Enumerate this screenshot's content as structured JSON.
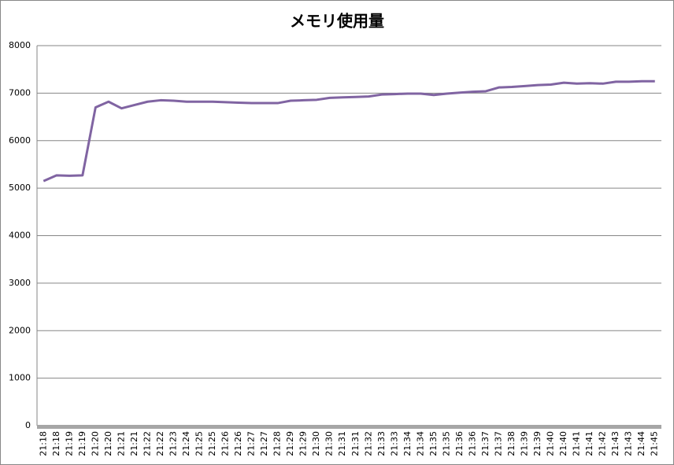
{
  "chart_data": {
    "type": "line",
    "title": "メモリ使用量",
    "categories": [
      "21:18",
      "21:18",
      "21:19",
      "21:19",
      "21:20",
      "21:20",
      "21:21",
      "21:21",
      "21:22",
      "21:22",
      "21:23",
      "21:24",
      "21:25",
      "21:25",
      "21:26",
      "21:26",
      "21:27",
      "21:27",
      "21:28",
      "21:29",
      "21:29",
      "21:30",
      "21:30",
      "21:31",
      "21:31",
      "21:32",
      "21:33",
      "21:33",
      "21:34",
      "21:34",
      "21:35",
      "21:35",
      "21:36",
      "21:36",
      "21:37",
      "21:37",
      "21:38",
      "21:39",
      "21:39",
      "21:40",
      "21:40",
      "21:41",
      "21:41",
      "21:42",
      "21:43",
      "21:43",
      "21:44",
      "21:45"
    ],
    "series": [
      {
        "name": "メモリ使用量",
        "color": "#8064a2",
        "values": [
          5150,
          5270,
          5260,
          5270,
          6700,
          6820,
          6680,
          6750,
          6820,
          6850,
          6840,
          6820,
          6820,
          6820,
          6810,
          6800,
          6790,
          6790,
          6790,
          6840,
          6850,
          6860,
          6900,
          6910,
          6920,
          6930,
          6970,
          6980,
          6990,
          6990,
          6960,
          6990,
          7010,
          7030,
          7040,
          7120,
          7130,
          7150,
          7170,
          7180,
          7220,
          7200,
          7210,
          7200,
          7240,
          7240,
          7250,
          7250
        ]
      }
    ],
    "ylim": [
      0,
      8000
    ],
    "yticks": [
      0,
      1000,
      2000,
      3000,
      4000,
      5000,
      6000,
      7000,
      8000
    ],
    "grid": true
  }
}
